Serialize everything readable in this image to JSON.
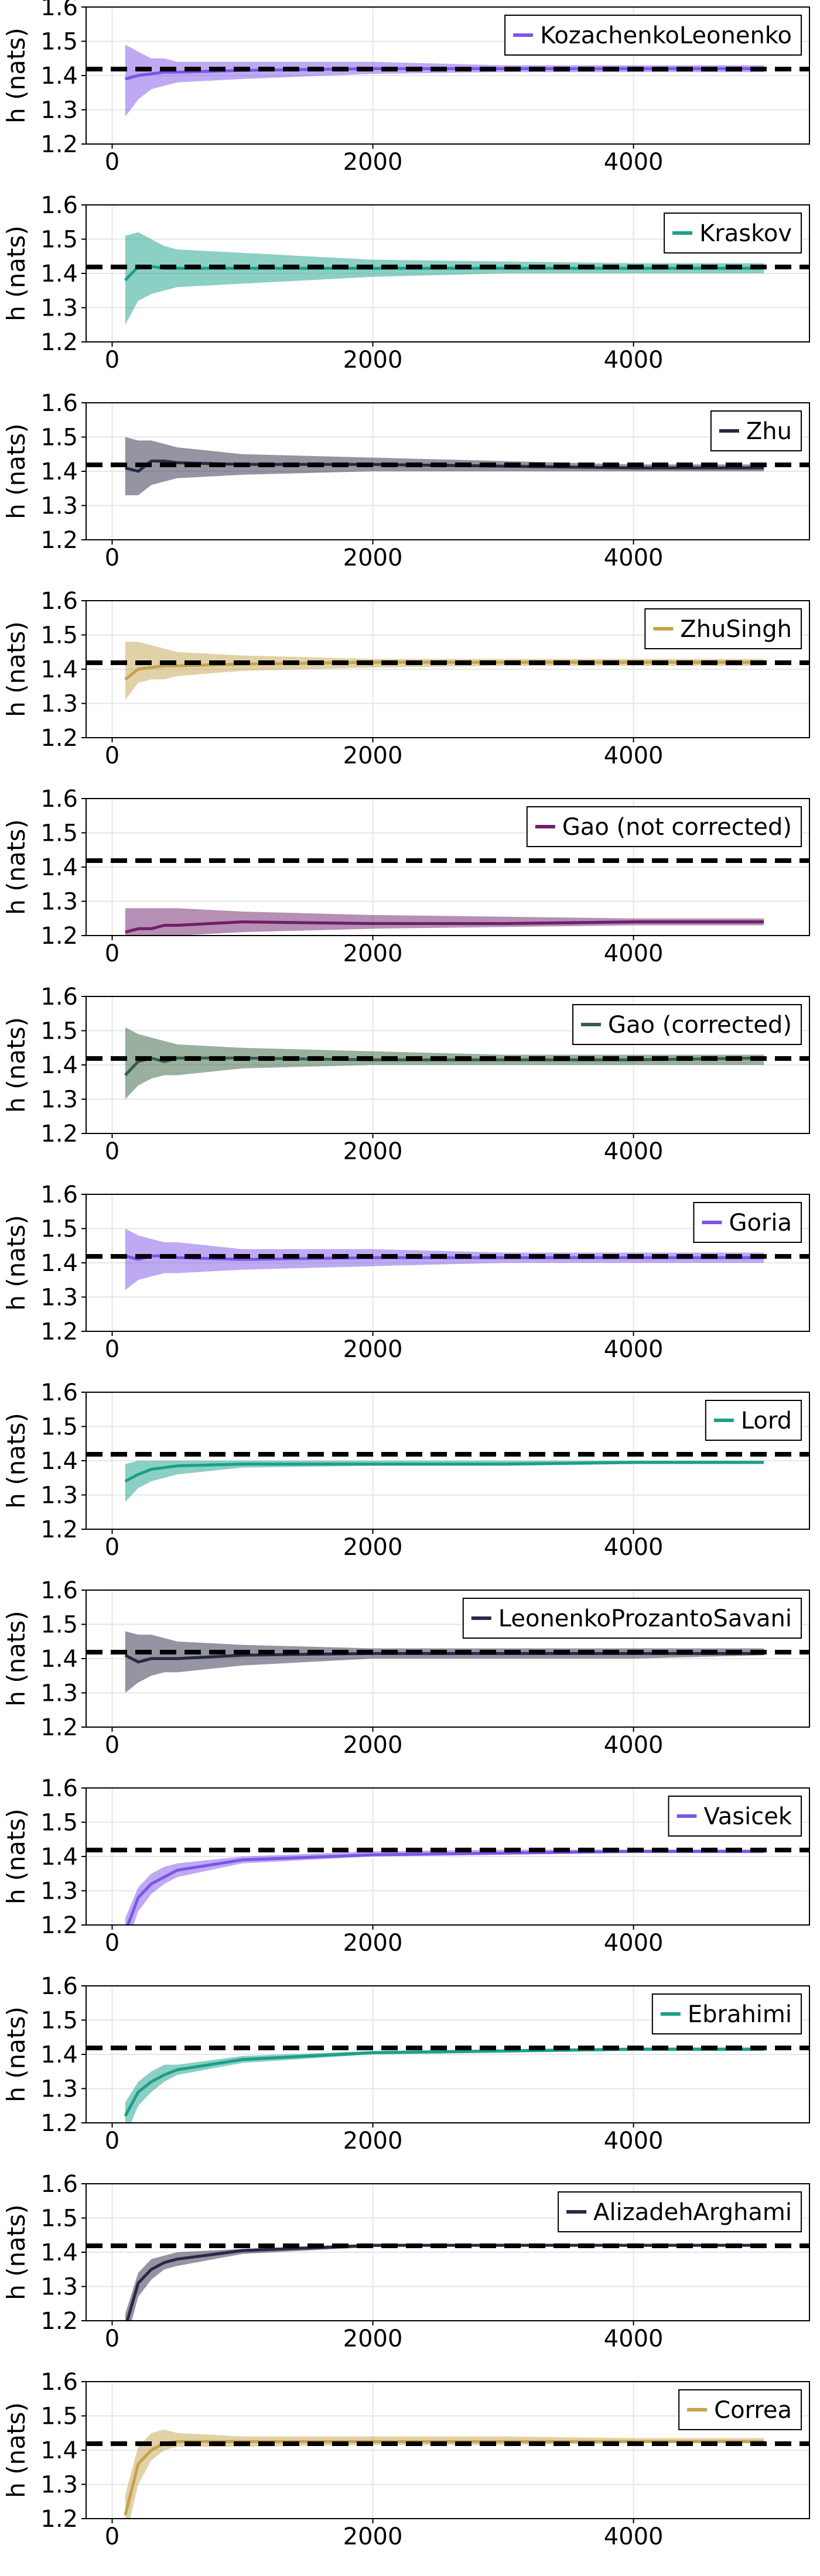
{
  "figure": {
    "ylabel": "h (nats)",
    "xticks": [
      0,
      2000,
      4000
    ],
    "yticks": [
      1.2,
      1.3,
      1.4,
      1.5,
      1.6
    ],
    "xlim": [
      -200,
      5350
    ],
    "ylim": [
      1.2,
      1.6
    ],
    "reference_value": 1.4189,
    "reference_style": "dashed black horizontal line",
    "legend_position": "top-right",
    "grid": true
  },
  "chart_data": [
    {
      "type": "line",
      "legend": "KozachenkoLeonenko",
      "color": "#7d55e8",
      "x": [
        100,
        200,
        300,
        400,
        500,
        1000,
        2000,
        3000,
        4000,
        5000
      ],
      "y": [
        1.39,
        1.4,
        1.405,
        1.41,
        1.41,
        1.415,
        1.42,
        1.42,
        1.42,
        1.42
      ],
      "lower": [
        1.28,
        1.33,
        1.36,
        1.37,
        1.38,
        1.39,
        1.405,
        1.41,
        1.41,
        1.41
      ],
      "upper": [
        1.49,
        1.47,
        1.45,
        1.45,
        1.44,
        1.44,
        1.44,
        1.43,
        1.43,
        1.43
      ]
    },
    {
      "type": "line",
      "legend": "Kraskov",
      "color": "#1aa089",
      "x": [
        100,
        200,
        300,
        400,
        500,
        1000,
        2000,
        3000,
        4000,
        5000
      ],
      "y": [
        1.38,
        1.42,
        1.42,
        1.415,
        1.415,
        1.415,
        1.415,
        1.415,
        1.415,
        1.415
      ],
      "lower": [
        1.25,
        1.32,
        1.34,
        1.35,
        1.36,
        1.37,
        1.39,
        1.4,
        1.4,
        1.4
      ],
      "upper": [
        1.51,
        1.52,
        1.5,
        1.48,
        1.47,
        1.46,
        1.44,
        1.435,
        1.43,
        1.43
      ]
    },
    {
      "type": "line",
      "legend": "Zhu",
      "color": "#292945",
      "x": [
        100,
        200,
        300,
        400,
        500,
        1000,
        2000,
        3000,
        4000,
        5000
      ],
      "y": [
        1.41,
        1.4,
        1.43,
        1.43,
        1.425,
        1.42,
        1.42,
        1.415,
        1.41,
        1.41
      ],
      "lower": [
        1.33,
        1.33,
        1.36,
        1.37,
        1.38,
        1.39,
        1.4,
        1.4,
        1.4,
        1.4
      ],
      "upper": [
        1.5,
        1.49,
        1.49,
        1.48,
        1.47,
        1.45,
        1.44,
        1.43,
        1.42,
        1.42
      ]
    },
    {
      "type": "line",
      "legend": "ZhuSingh",
      "color": "#c4a34d",
      "x": [
        100,
        200,
        300,
        400,
        500,
        1000,
        2000,
        3000,
        4000,
        5000
      ],
      "y": [
        1.37,
        1.4,
        1.405,
        1.41,
        1.41,
        1.415,
        1.42,
        1.42,
        1.42,
        1.42
      ],
      "lower": [
        1.31,
        1.36,
        1.37,
        1.37,
        1.38,
        1.395,
        1.405,
        1.41,
        1.41,
        1.41
      ],
      "upper": [
        1.48,
        1.48,
        1.47,
        1.46,
        1.45,
        1.44,
        1.43,
        1.43,
        1.43,
        1.43
      ]
    },
    {
      "type": "line",
      "legend": "Gao (not corrected)",
      "color": "#6e1f6b",
      "x": [
        100,
        200,
        300,
        400,
        500,
        1000,
        2000,
        3000,
        4000,
        5000
      ],
      "y": [
        1.21,
        1.22,
        1.22,
        1.23,
        1.23,
        1.24,
        1.235,
        1.235,
        1.24,
        1.24
      ],
      "lower": [
        1.16,
        1.18,
        1.19,
        1.2,
        1.2,
        1.21,
        1.22,
        1.225,
        1.23,
        1.23
      ],
      "upper": [
        1.28,
        1.28,
        1.28,
        1.28,
        1.28,
        1.27,
        1.26,
        1.255,
        1.25,
        1.25
      ]
    },
    {
      "type": "line",
      "legend": "Gao (corrected)",
      "color": "#36613f",
      "x": [
        100,
        200,
        300,
        400,
        500,
        1000,
        2000,
        3000,
        4000,
        5000
      ],
      "y": [
        1.37,
        1.41,
        1.42,
        1.41,
        1.42,
        1.42,
        1.415,
        1.415,
        1.415,
        1.42
      ],
      "lower": [
        1.3,
        1.34,
        1.36,
        1.37,
        1.37,
        1.39,
        1.4,
        1.4,
        1.4,
        1.4
      ],
      "upper": [
        1.51,
        1.49,
        1.48,
        1.47,
        1.46,
        1.45,
        1.44,
        1.43,
        1.43,
        1.43
      ]
    },
    {
      "type": "line",
      "legend": "Goria",
      "color": "#7d55e8",
      "x": [
        100,
        200,
        300,
        400,
        500,
        1000,
        2000,
        3000,
        4000,
        5000
      ],
      "y": [
        1.42,
        1.41,
        1.42,
        1.42,
        1.415,
        1.41,
        1.415,
        1.415,
        1.415,
        1.415
      ],
      "lower": [
        1.32,
        1.35,
        1.36,
        1.37,
        1.37,
        1.38,
        1.39,
        1.4,
        1.4,
        1.4
      ],
      "upper": [
        1.5,
        1.48,
        1.47,
        1.46,
        1.46,
        1.44,
        1.44,
        1.43,
        1.43,
        1.43
      ]
    },
    {
      "type": "line",
      "legend": "Lord",
      "color": "#1aa089",
      "x": [
        100,
        200,
        300,
        400,
        500,
        1000,
        2000,
        3000,
        4000,
        5000
      ],
      "y": [
        1.34,
        1.36,
        1.375,
        1.38,
        1.385,
        1.39,
        1.39,
        1.39,
        1.395,
        1.395
      ],
      "lower": [
        1.28,
        1.32,
        1.34,
        1.35,
        1.36,
        1.38,
        1.385,
        1.385,
        1.39,
        1.39
      ],
      "upper": [
        1.39,
        1.4,
        1.4,
        1.4,
        1.4,
        1.4,
        1.4,
        1.4,
        1.4,
        1.4
      ]
    },
    {
      "type": "line",
      "legend": "LeonenkoProzantoSavani",
      "color": "#292945",
      "x": [
        100,
        200,
        300,
        400,
        500,
        1000,
        2000,
        3000,
        4000,
        5000
      ],
      "y": [
        1.41,
        1.39,
        1.4,
        1.4,
        1.4,
        1.41,
        1.415,
        1.415,
        1.415,
        1.415
      ],
      "lower": [
        1.3,
        1.33,
        1.35,
        1.36,
        1.36,
        1.38,
        1.4,
        1.4,
        1.4,
        1.41
      ],
      "upper": [
        1.48,
        1.47,
        1.47,
        1.46,
        1.45,
        1.44,
        1.43,
        1.43,
        1.43,
        1.43
      ]
    },
    {
      "type": "line",
      "legend": "Vasicek",
      "color": "#7d55e8",
      "x": [
        100,
        200,
        300,
        400,
        500,
        1000,
        2000,
        3000,
        4000,
        5000
      ],
      "y": [
        1.18,
        1.28,
        1.32,
        1.34,
        1.36,
        1.39,
        1.405,
        1.41,
        1.415,
        1.415
      ],
      "lower": [
        1.13,
        1.24,
        1.29,
        1.32,
        1.34,
        1.38,
        1.4,
        1.405,
        1.41,
        1.41
      ],
      "upper": [
        1.22,
        1.31,
        1.35,
        1.37,
        1.38,
        1.4,
        1.415,
        1.42,
        1.42,
        1.42
      ]
    },
    {
      "type": "line",
      "legend": "Ebrahimi",
      "color": "#1aa089",
      "x": [
        100,
        200,
        300,
        400,
        500,
        1000,
        2000,
        3000,
        4000,
        5000
      ],
      "y": [
        1.22,
        1.29,
        1.32,
        1.34,
        1.355,
        1.385,
        1.405,
        1.41,
        1.415,
        1.415
      ],
      "lower": [
        1.16,
        1.25,
        1.29,
        1.32,
        1.34,
        1.375,
        1.4,
        1.405,
        1.41,
        1.41
      ],
      "upper": [
        1.26,
        1.32,
        1.35,
        1.37,
        1.37,
        1.395,
        1.41,
        1.415,
        1.42,
        1.42
      ]
    },
    {
      "type": "line",
      "legend": "AlizadehArghami",
      "color": "#292945",
      "x": [
        100,
        200,
        300,
        400,
        500,
        1000,
        2000,
        3000,
        4000,
        5000
      ],
      "y": [
        1.18,
        1.31,
        1.35,
        1.37,
        1.38,
        1.405,
        1.42,
        1.42,
        1.42,
        1.42
      ],
      "lower": [
        1.13,
        1.27,
        1.32,
        1.35,
        1.36,
        1.395,
        1.415,
        1.42,
        1.42,
        1.42
      ],
      "upper": [
        1.22,
        1.34,
        1.38,
        1.39,
        1.4,
        1.41,
        1.425,
        1.425,
        1.425,
        1.425
      ]
    },
    {
      "type": "line",
      "legend": "Correa",
      "color": "#c4a34d",
      "x": [
        100,
        200,
        300,
        400,
        500,
        1000,
        2000,
        3000,
        4000,
        5000
      ],
      "y": [
        1.21,
        1.36,
        1.4,
        1.42,
        1.425,
        1.425,
        1.425,
        1.425,
        1.425,
        1.425
      ],
      "lower": [
        1.14,
        1.3,
        1.37,
        1.4,
        1.41,
        1.41,
        1.415,
        1.415,
        1.42,
        1.42
      ],
      "upper": [
        1.27,
        1.41,
        1.45,
        1.46,
        1.45,
        1.44,
        1.44,
        1.44,
        1.435,
        1.435
      ]
    }
  ]
}
